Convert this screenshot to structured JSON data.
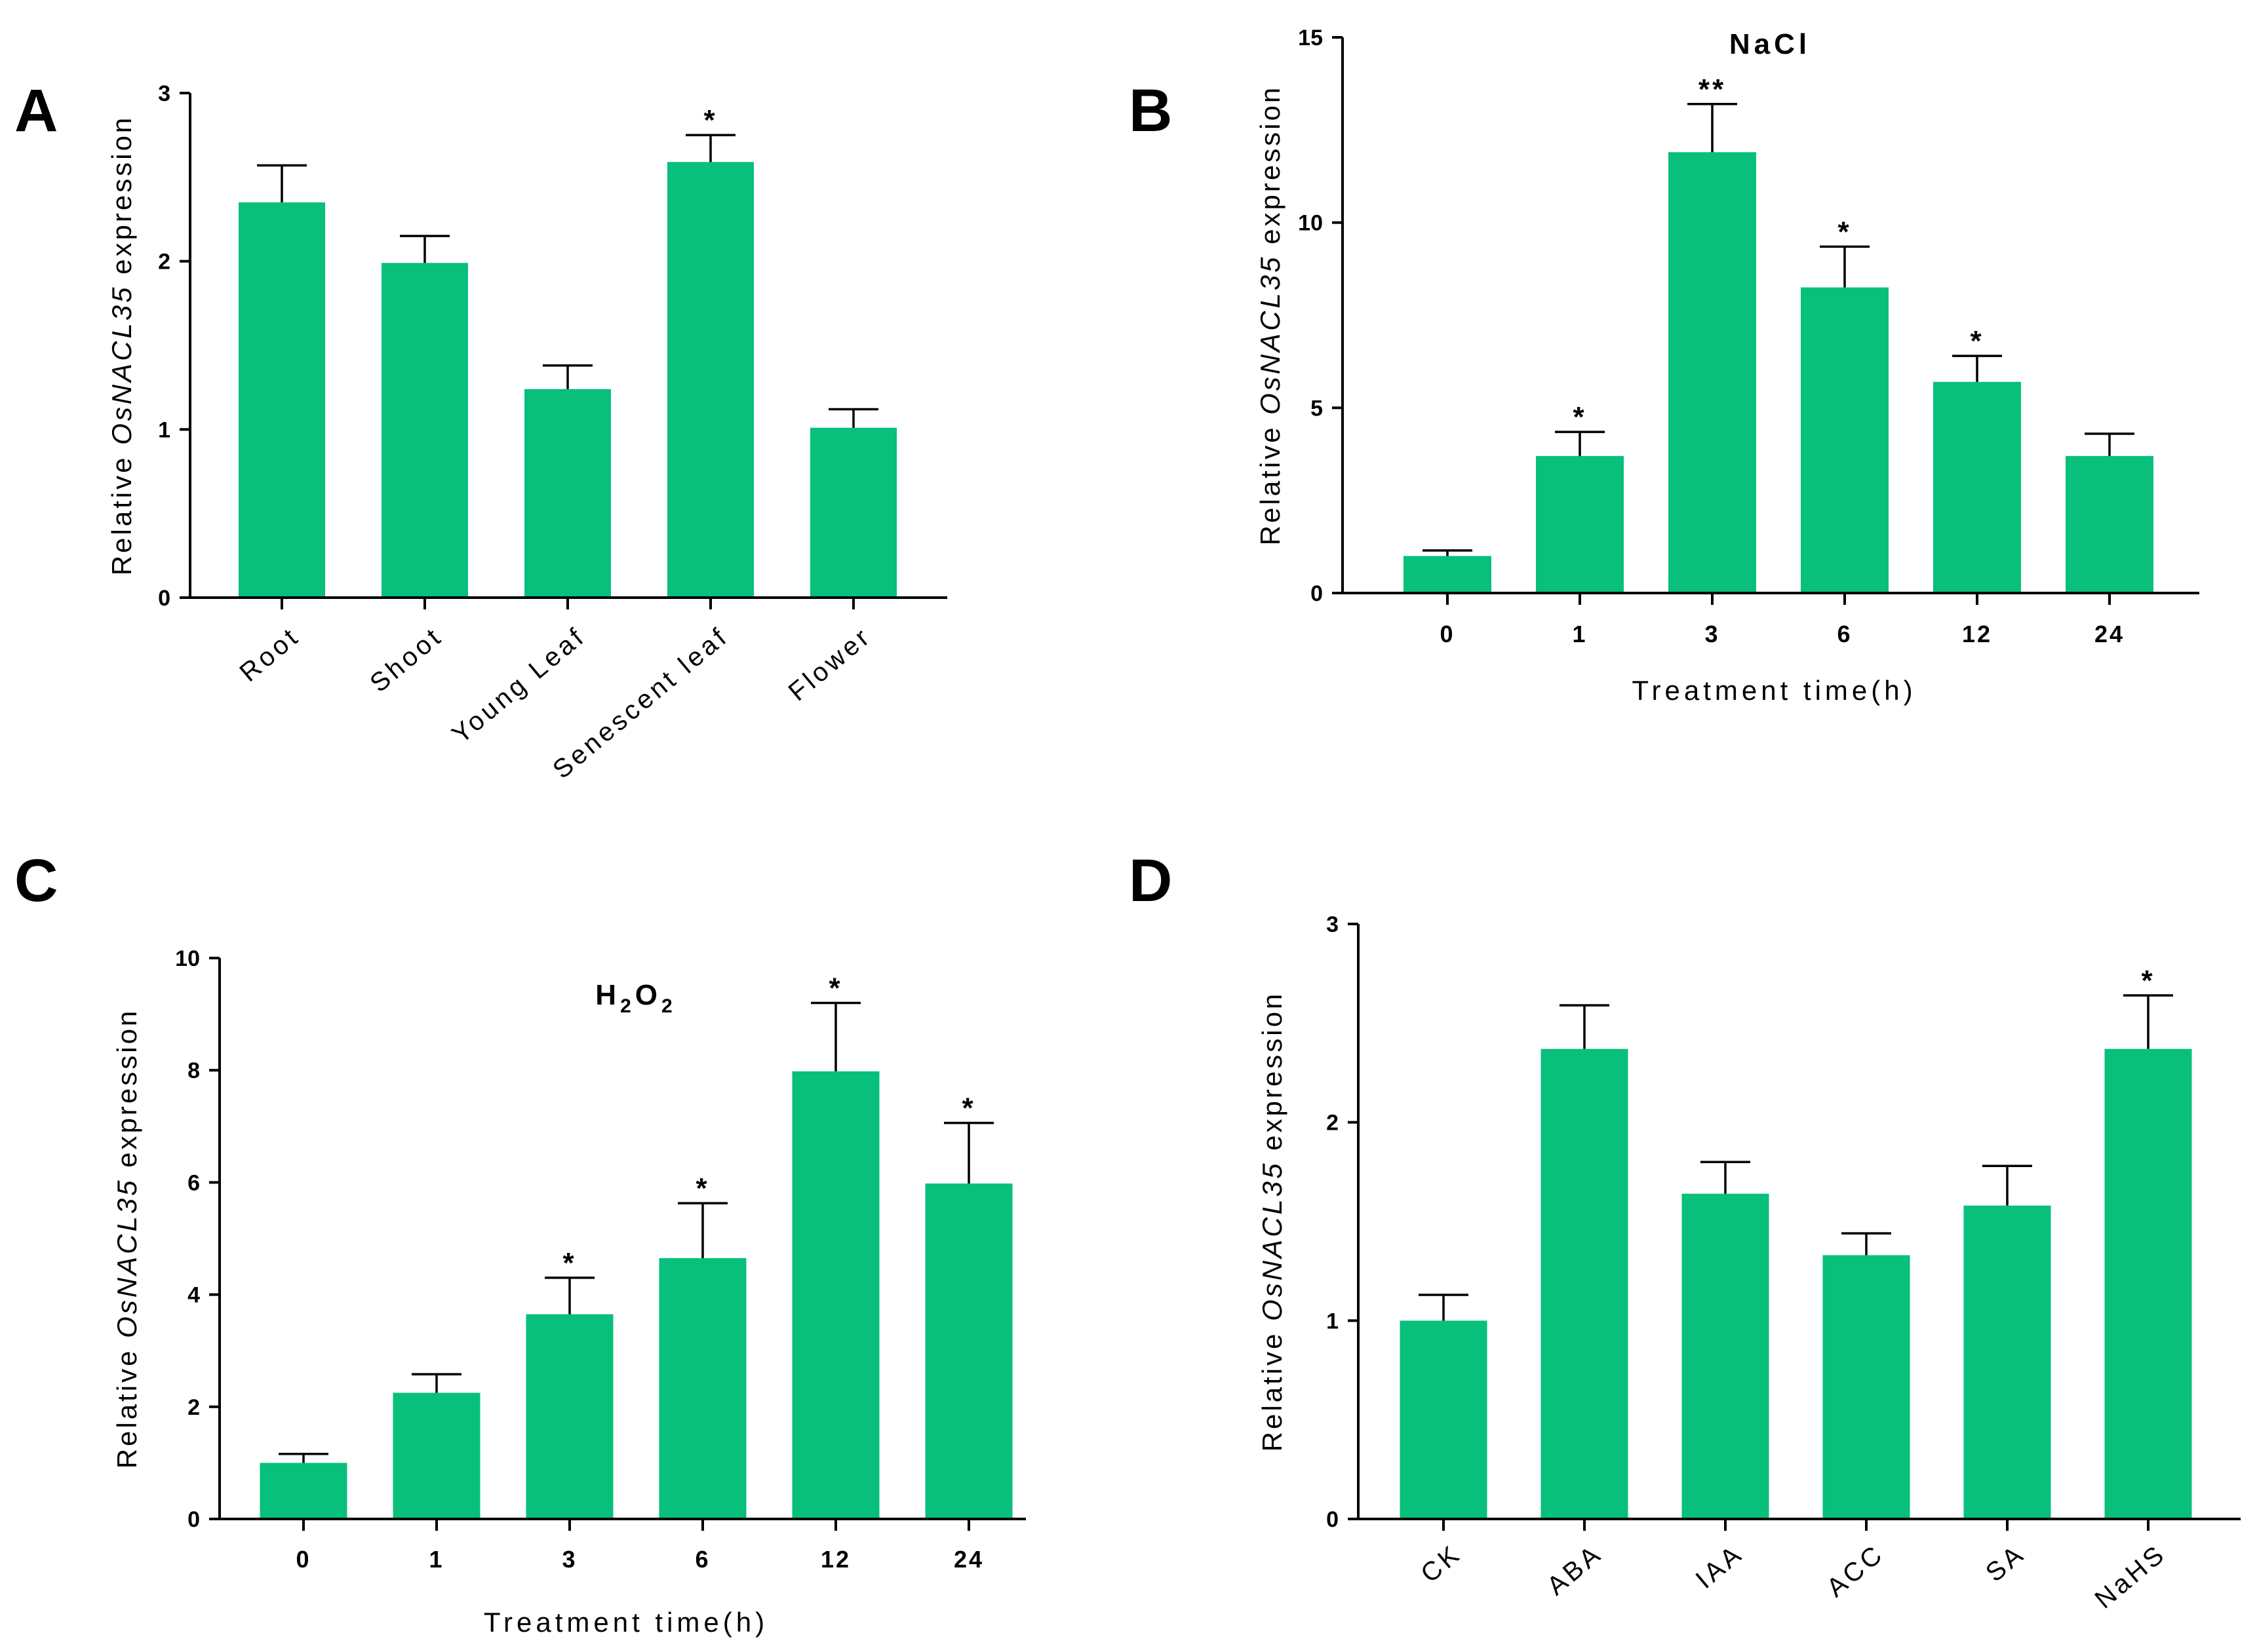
{
  "chart_data": [
    {
      "id": "A",
      "panel_label": "A",
      "type": "bar",
      "title": "",
      "ylabel_prefix": "Relative ",
      "ylabel_gene": "OsNACL35",
      "ylabel_suffix": " expression",
      "xlabel": "",
      "ylim": [
        0,
        3
      ],
      "yticks": [
        0,
        1,
        2,
        3
      ],
      "categories": [
        "Root",
        "Shoot",
        "Young Leaf",
        "Senescent leaf",
        "Flower"
      ],
      "values": [
        2.35,
        1.99,
        1.24,
        2.59,
        1.01
      ],
      "errors": [
        0.22,
        0.16,
        0.14,
        0.16,
        0.11
      ],
      "significance": [
        "",
        "",
        "",
        "*",
        ""
      ],
      "rotated_labels": true
    },
    {
      "id": "B",
      "panel_label": "B",
      "type": "bar",
      "title": "NaCl",
      "ylabel_prefix": "Relative ",
      "ylabel_gene": "OsNACL35",
      "ylabel_suffix": " expression",
      "xlabel": "Treatment time(h)",
      "ylim": [
        0,
        15
      ],
      "yticks": [
        0,
        5,
        10,
        15
      ],
      "categories": [
        "0",
        "1",
        "3",
        "6",
        "12",
        "24"
      ],
      "values": [
        1.0,
        3.7,
        11.9,
        8.25,
        5.7,
        3.7
      ],
      "errors": [
        0.15,
        0.65,
        1.3,
        1.1,
        0.7,
        0.6
      ],
      "significance": [
        "",
        "*",
        "**",
        "*",
        "*",
        ""
      ],
      "rotated_labels": false
    },
    {
      "id": "C",
      "panel_label": "C",
      "type": "bar",
      "title_parts": [
        "H",
        "2",
        "O",
        "2"
      ],
      "ylabel_prefix": "Relative ",
      "ylabel_gene": "OsNACL35",
      "ylabel_suffix": " expression",
      "xlabel": "Treatment time(h)",
      "ylim": [
        0,
        10
      ],
      "yticks": [
        0,
        2,
        4,
        6,
        8,
        10
      ],
      "categories": [
        "0",
        "1",
        "3",
        "6",
        "12",
        "24"
      ],
      "values": [
        1.0,
        2.25,
        3.65,
        4.65,
        7.98,
        5.98
      ],
      "errors": [
        0.16,
        0.33,
        0.65,
        0.98,
        1.22,
        1.08
      ],
      "significance": [
        "",
        "",
        "*",
        "*",
        "*",
        "*"
      ],
      "rotated_labels": false
    },
    {
      "id": "D",
      "panel_label": "D",
      "type": "bar",
      "title": "",
      "ylabel_prefix": "Relative ",
      "ylabel_gene": "OsNACL35",
      "ylabel_suffix": " expression",
      "xlabel": "",
      "ylim": [
        0,
        3
      ],
      "yticks": [
        0,
        1,
        2,
        3
      ],
      "categories": [
        "CK",
        "ABA",
        "IAA",
        "ACC",
        "SA",
        "NaHS"
      ],
      "values": [
        1.0,
        2.37,
        1.64,
        1.33,
        1.58,
        2.37
      ],
      "errors": [
        0.13,
        0.22,
        0.16,
        0.11,
        0.2,
        0.27
      ],
      "significance": [
        "",
        "",
        "",
        "",
        "",
        "*"
      ],
      "rotated_labels": true
    }
  ]
}
